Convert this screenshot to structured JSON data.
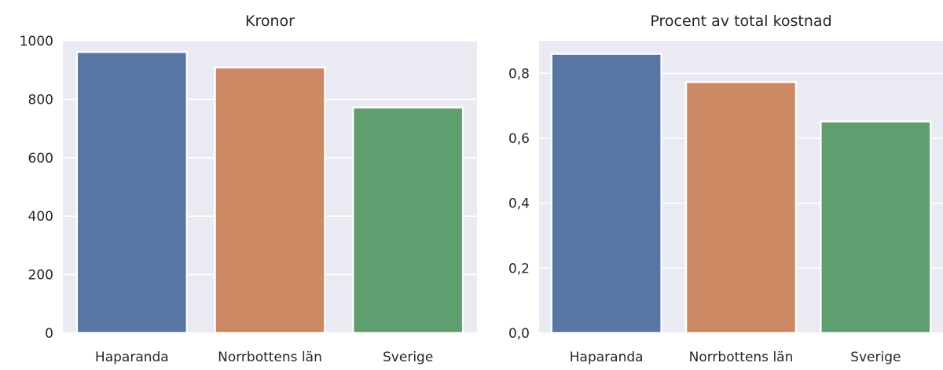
{
  "chart_data": [
    {
      "type": "bar",
      "title": "Kronor",
      "categories": [
        "Haparanda",
        "Norrbottens län",
        "Sverige"
      ],
      "values": [
        962,
        909,
        772
      ],
      "ylim": [
        0,
        1000
      ],
      "yticks": [
        0,
        200,
        400,
        600,
        800,
        1000
      ],
      "ytick_labels": [
        "0",
        "200",
        "400",
        "600",
        "800",
        "1000"
      ],
      "grid": true,
      "colors": [
        "#5875a4",
        "#cc8963",
        "#5f9e6e"
      ]
    },
    {
      "type": "bar",
      "title": "Procent av total kostnad",
      "categories": [
        "Haparanda",
        "Norrbottens län",
        "Sverige"
      ],
      "values": [
        0.86,
        0.773,
        0.652
      ],
      "ylim": [
        0,
        0.9
      ],
      "yticks": [
        0,
        0.2,
        0.4,
        0.6,
        0.8
      ],
      "ytick_labels": [
        "0,0",
        "0,2",
        "0,4",
        "0,6",
        "0,8"
      ],
      "grid": true,
      "colors": [
        "#5875a4",
        "#cc8963",
        "#5f9e6e"
      ]
    }
  ],
  "style": {
    "plot_background": "#eaeaf2",
    "grid_color": "#ffffff",
    "text_color": "#262626"
  }
}
